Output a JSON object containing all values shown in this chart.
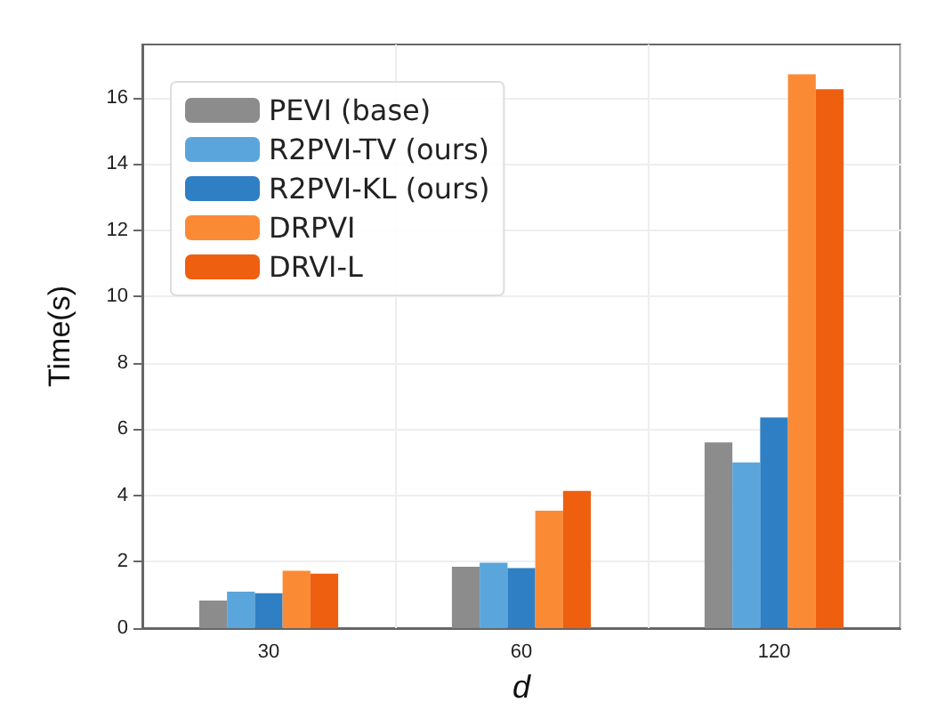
{
  "chart_data": {
    "type": "bar",
    "xlabel": "d",
    "ylabel": "Time(s)",
    "categories": [
      "30",
      "60",
      "120"
    ],
    "series": [
      {
        "name": "PEVI (base)",
        "color": "#8c8c8c",
        "values": [
          0.83,
          1.85,
          5.6
        ]
      },
      {
        "name": "R2PVI-TV (ours)",
        "color": "#5aa6dc",
        "values": [
          1.1,
          1.97,
          5.0
        ]
      },
      {
        "name": "R2PVI-KL (ours)",
        "color": "#2f7fc4",
        "values": [
          1.05,
          1.81,
          6.35
        ]
      },
      {
        "name": "DRPVI",
        "color": "#fb8a35",
        "values": [
          1.73,
          3.54,
          16.7
        ]
      },
      {
        "name": "DRVI-L",
        "color": "#ee5f10",
        "values": [
          1.64,
          4.14,
          16.25
        ]
      }
    ],
    "ylim": [
      0,
      17.6
    ],
    "yticks": [
      0,
      2,
      4,
      6,
      8,
      10,
      12,
      14,
      16
    ],
    "grid": true,
    "legend": "top left"
  }
}
